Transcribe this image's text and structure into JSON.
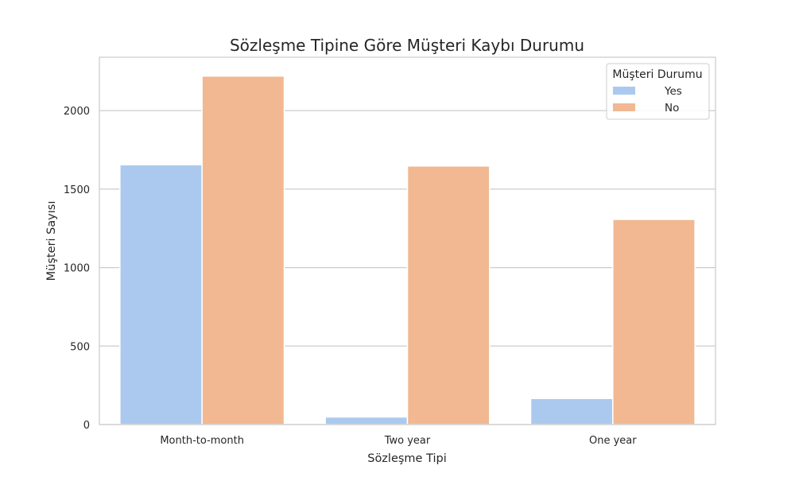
{
  "chart_data": {
    "type": "bar",
    "title": "Sözleşme Tipine Göre Müşteri Kaybı Durumu",
    "xlabel": "Sözleşme Tipi",
    "ylabel": "Müşteri Sayısı",
    "categories": [
      "Month-to-month",
      "Two year",
      "One year"
    ],
    "series": [
      {
        "name": "Yes",
        "values": [
          1655,
          48,
          166
        ],
        "color": "#abc9ee"
      },
      {
        "name": "No",
        "values": [
          2220,
          1647,
          1307
        ],
        "color": "#f1b891"
      }
    ],
    "ylim": [
      0,
      2340
    ],
    "yticks": [
      0,
      500,
      1000,
      1500,
      2000
    ],
    "grid": "y",
    "legend": {
      "title": "Müşteri Durumu",
      "position": "top-right"
    }
  }
}
